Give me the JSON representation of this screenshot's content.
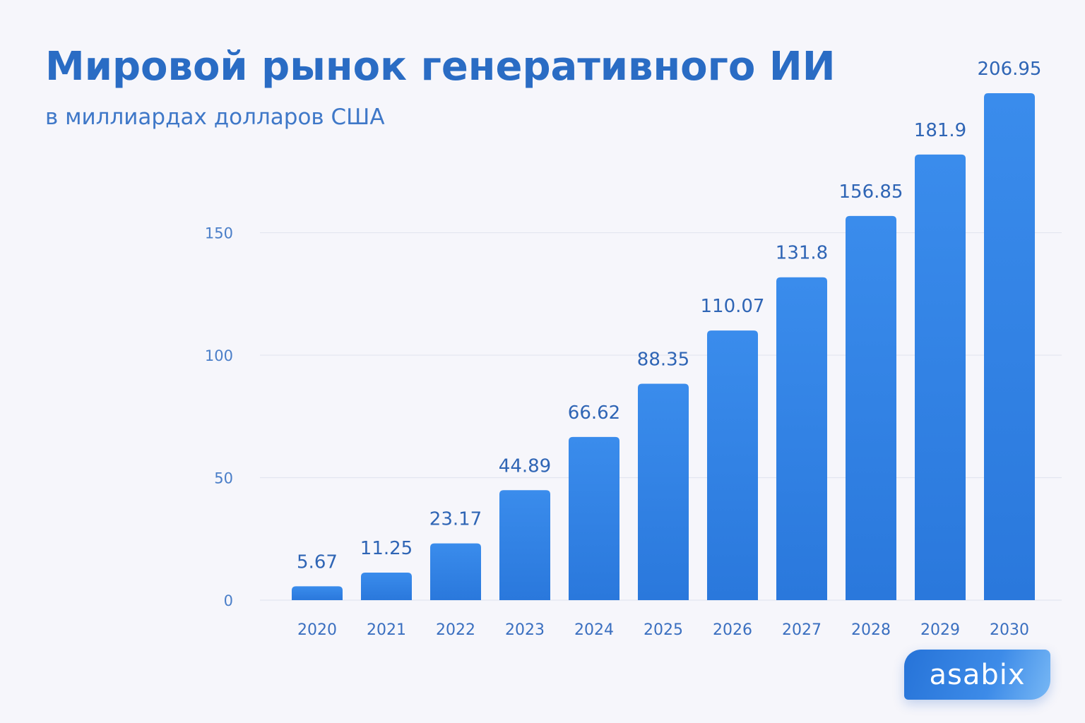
{
  "chart_data": {
    "type": "bar",
    "title": "Мировой рынок генеративного ИИ",
    "subtitle": "в миллиардах долларов США",
    "categories": [
      "2020",
      "2021",
      "2022",
      "2023",
      "2024",
      "2025",
      "2026",
      "2027",
      "2028",
      "2029",
      "2030"
    ],
    "values": [
      5.67,
      11.25,
      23.17,
      44.89,
      66.62,
      88.35,
      110.07,
      131.8,
      156.85,
      181.9,
      206.95
    ],
    "data_labels": [
      "5.67",
      "11.25",
      "23.17",
      "44.89",
      "66.62",
      "88.35",
      "110.07",
      "131.8",
      "156.85",
      "181.9",
      "206.95"
    ],
    "yticks": [
      0,
      50,
      100,
      150
    ],
    "ylim": [
      0,
      210
    ],
    "grid": true,
    "bar_color": "#2f82e6"
  },
  "logo": {
    "text": "asabix"
  }
}
